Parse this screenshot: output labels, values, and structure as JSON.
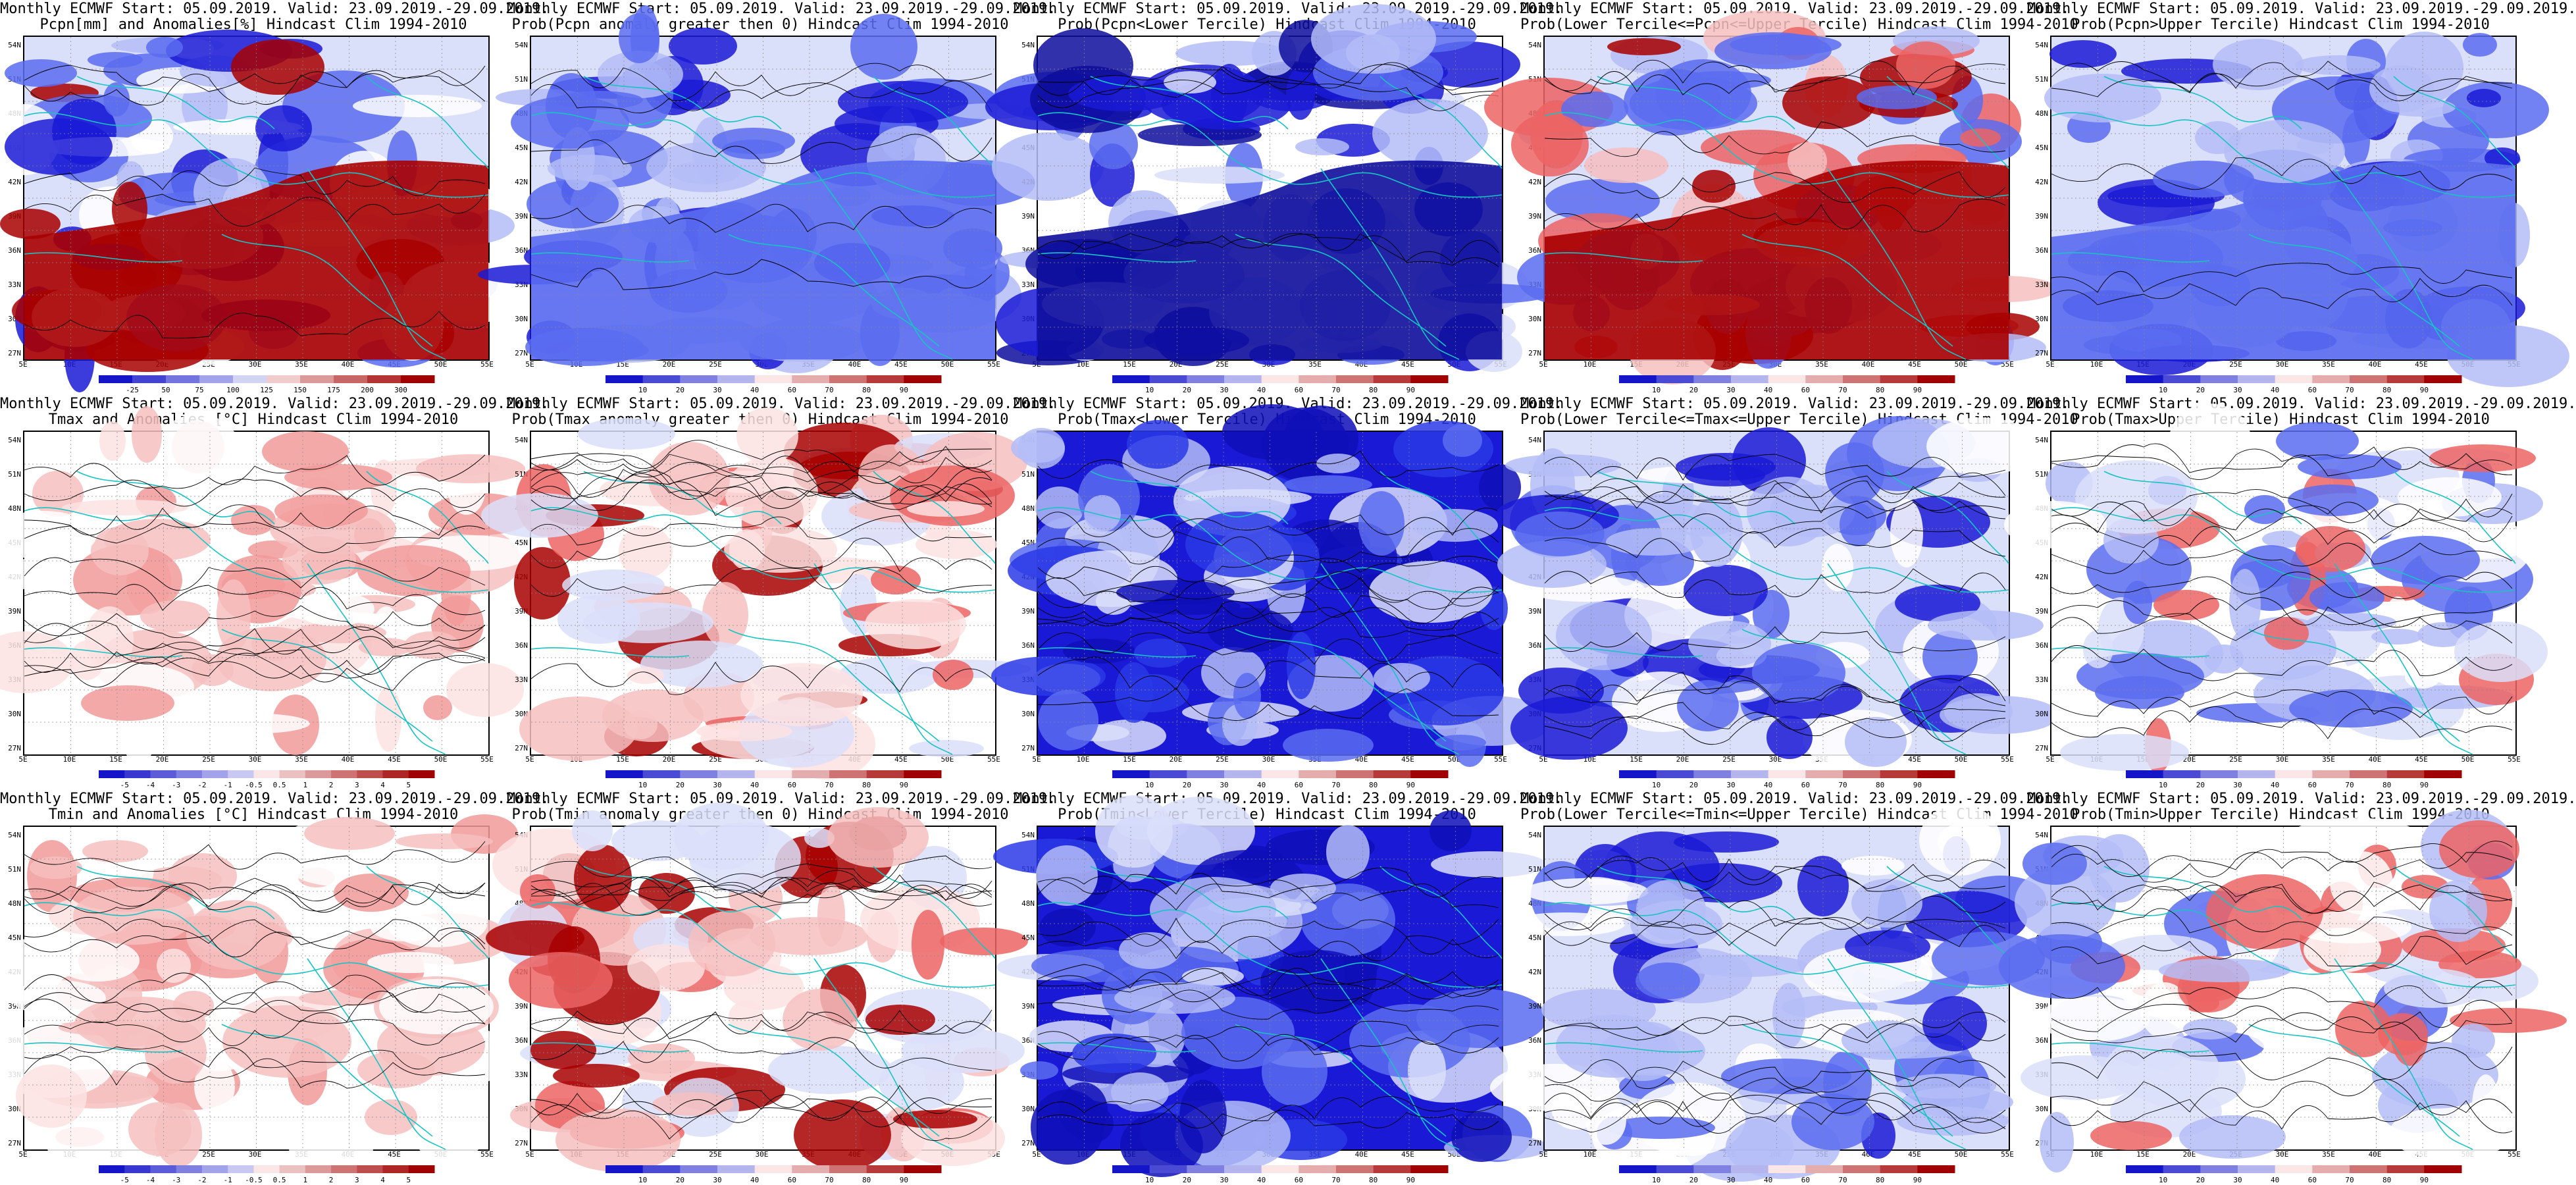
{
  "figure": {
    "panels": [
      {
        "row": 0,
        "col": 0,
        "title_line1": "Monthly ECMWF Start: 05.09.2019. Valid: 23.09.2019.-29.09.2019.",
        "title_line2": "Pcpn[mm] and Anomalies[%] Hindcast Clim 1994-2010",
        "colorbar": "pcpn_pct",
        "colorbar_labels": [
          "-25",
          "50",
          "75",
          "100",
          "125",
          "150",
          "175",
          "200",
          "300"
        ],
        "shading": "pcpn_anom",
        "map_type": "field"
      },
      {
        "row": 0,
        "col": 1,
        "title_line1": "Monthly ECMWF Start: 05.09.2019. Valid: 23.09.2019.-29.09.2019.",
        "title_line2": "Prob(Pcpn anomaly greater then 0) Hindcast Clim 1994-2010",
        "colorbar": "prob",
        "colorbar_labels": [
          "10",
          "20",
          "30",
          "40",
          "60",
          "70",
          "80",
          "90"
        ],
        "shading": "blue_dry",
        "map_type": "field"
      },
      {
        "row": 0,
        "col": 2,
        "title_line1": "Monthly ECMWF Start: 05.09.2019. Valid: 23.09.2019.-29.09.2019.",
        "title_line2": "Prob(Pcpn<Lower Tercile) Hindcast Clim 1994-2010",
        "colorbar": "prob",
        "colorbar_labels": [
          "10",
          "20",
          "30",
          "40",
          "60",
          "70",
          "80",
          "90"
        ],
        "shading": "pcpn_lower",
        "map_type": "field"
      },
      {
        "row": 0,
        "col": 3,
        "title_line1": "Monthly ECMWF Start: 05.09.2019. Valid: 23.09.2019.-29.09.2019.",
        "title_line2": "Prob(Lower Tercile<=Pcpn<=Upper Tercile) Hindcast Clim 1994-2010",
        "colorbar": "prob",
        "colorbar_labels": [
          "10",
          "20",
          "30",
          "40",
          "60",
          "70",
          "80",
          "90"
        ],
        "shading": "pcpn_middle",
        "map_type": "field"
      },
      {
        "row": 0,
        "col": 4,
        "title_line1": "Monthly ECMWF Start: 05.09.2019. Valid: 23.09.2019.-29.09.2019.",
        "title_line2": "Prob(Pcpn>Upper Tercile) Hindcast Clim 1994-2010",
        "colorbar": "prob",
        "colorbar_labels": [
          "10",
          "20",
          "30",
          "40",
          "60",
          "70",
          "80",
          "90"
        ],
        "shading": "blue_dry",
        "map_type": "field"
      },
      {
        "row": 1,
        "col": 0,
        "title_line1": "Monthly ECMWF Start: 05.09.2019. Valid: 23.09.2019.-29.09.2019.",
        "title_line2": "Tmax and Anomalies [°C] Hindcast Clim 1994-2010",
        "colorbar": "anom",
        "colorbar_labels": [
          "-5",
          "-4",
          "-3",
          "-2",
          "-1",
          "-0.5",
          "0.5",
          "1",
          "2",
          "3",
          "4",
          "5"
        ],
        "shading": "warm_light",
        "map_type": "field"
      },
      {
        "row": 1,
        "col": 1,
        "title_line1": "Monthly ECMWF Start: 05.09.2019. Valid: 23.09.2019.-29.09.2019.",
        "title_line2": "Prob(Tmax anomaly greater then 0) Hindcast Clim 1994-2010",
        "colorbar": "prob",
        "colorbar_labels": [
          "10",
          "20",
          "30",
          "40",
          "60",
          "70",
          "80",
          "90"
        ],
        "shading": "warm_prob",
        "map_type": "field"
      },
      {
        "row": 1,
        "col": 2,
        "title_line1": "Monthly ECMWF Start: 05.09.2019. Valid: 23.09.2019.-29.09.2019.",
        "title_line2": "Prob(Tmax<Lower Tercile) Hindcast Clim 1994-2010",
        "colorbar": "prob",
        "colorbar_labels": [
          "10",
          "20",
          "30",
          "40",
          "60",
          "70",
          "80",
          "90"
        ],
        "shading": "deep_blue",
        "map_type": "field"
      },
      {
        "row": 1,
        "col": 3,
        "title_line1": "Monthly ECMWF Start: 05.09.2019. Valid: 23.09.2019.-29.09.2019.",
        "title_line2": "Prob(Lower Tercile<=Tmax<=Upper Tercile) Hindcast Clim 1994-2010",
        "colorbar": "prob",
        "colorbar_labels": [
          "10",
          "20",
          "30",
          "40",
          "60",
          "70",
          "80",
          "90"
        ],
        "shading": "mid_blue",
        "map_type": "field"
      },
      {
        "row": 1,
        "col": 4,
        "title_line1": "Monthly ECMWF Start: 05.09.2019. Valid: 23.09.2019.-29.09.2019.",
        "title_line2": "Prob(Tmax>Upper Tercile) Hindcast Clim 1994-2010",
        "colorbar": "prob",
        "colorbar_labels": [
          "10",
          "20",
          "30",
          "40",
          "60",
          "70",
          "80",
          "90"
        ],
        "shading": "light_mixed",
        "map_type": "field"
      },
      {
        "row": 2,
        "col": 0,
        "title_line1": "Monthly ECMWF Start: 05.09.2019. Valid: 23.09.2019.-29.09.2019.",
        "title_line2": "Tmin and Anomalies [°C] Hindcast Clim 1994-2010",
        "colorbar": "anom",
        "colorbar_labels": [
          "-5",
          "-4",
          "-3",
          "-2",
          "-1",
          "-0.5",
          "0.5",
          "1",
          "2",
          "3",
          "4",
          "5"
        ],
        "shading": "warm_light",
        "map_type": "field"
      },
      {
        "row": 2,
        "col": 1,
        "title_line1": "Monthly ECMWF Start: 05.09.2019. Valid: 23.09.2019.-29.09.2019.",
        "title_line2": "Prob(Tmin anomaly greater then 0) Hindcast Clim 1994-2010",
        "colorbar": "prob",
        "colorbar_labels": [
          "10",
          "20",
          "30",
          "40",
          "60",
          "70",
          "80",
          "90"
        ],
        "shading": "warm_prob",
        "map_type": "field"
      },
      {
        "row": 2,
        "col": 2,
        "title_line1": "Monthly ECMWF Start: 05.09.2019. Valid: 23.09.2019.-29.09.2019.",
        "title_line2": "Prob(Tmin<Lower Tercile) Hindcast Clim 1994-2010",
        "colorbar": "prob",
        "colorbar_labels": [
          "10",
          "20",
          "30",
          "40",
          "60",
          "70",
          "80",
          "90"
        ],
        "shading": "deep_blue",
        "map_type": "field"
      },
      {
        "row": 2,
        "col": 3,
        "title_line1": "Monthly ECMWF Start: 05.09.2019. Valid: 23.09.2019.-29.09.2019.",
        "title_line2": "Prob(Lower Tercile<=Tmin<=Upper Tercile) Hindcast Clim 1994-2010",
        "colorbar": "prob",
        "colorbar_labels": [
          "10",
          "20",
          "30",
          "40",
          "60",
          "70",
          "80",
          "90"
        ],
        "shading": "mid_blue",
        "map_type": "field"
      },
      {
        "row": 2,
        "col": 4,
        "title_line1": "Monthly ECMWF Start: 05.09.2019. Valid: 23.09.2019.-29.09.2019.",
        "title_line2": "Prob(Tmin>Upper Tercile) Hindcast Clim 1994-2010",
        "colorbar": "prob",
        "colorbar_labels": [
          "10",
          "20",
          "30",
          "40",
          "60",
          "70",
          "80",
          "90"
        ],
        "shading": "light_mixed",
        "map_type": "field"
      }
    ],
    "lat_labels": [
      "54N",
      "51N",
      "48N",
      "45N",
      "42N",
      "39N",
      "36N",
      "33N",
      "30N",
      "27N"
    ],
    "lon_labels": [
      "5E",
      "10E",
      "15E",
      "20E",
      "25E",
      "30E",
      "35E",
      "40E",
      "45E",
      "50E",
      "55E"
    ],
    "colors": {
      "coast": "#19c3c3",
      "contour": "#000000",
      "deep_blue": "#1a1ad6",
      "mid_blue": "#5a6cf0",
      "light_blue": "#b4bdf7",
      "pale_blue": "#dadffa",
      "light_red": "#f6c0c0",
      "mid_red": "#ec6464",
      "deep_red": "#a80000"
    }
  }
}
